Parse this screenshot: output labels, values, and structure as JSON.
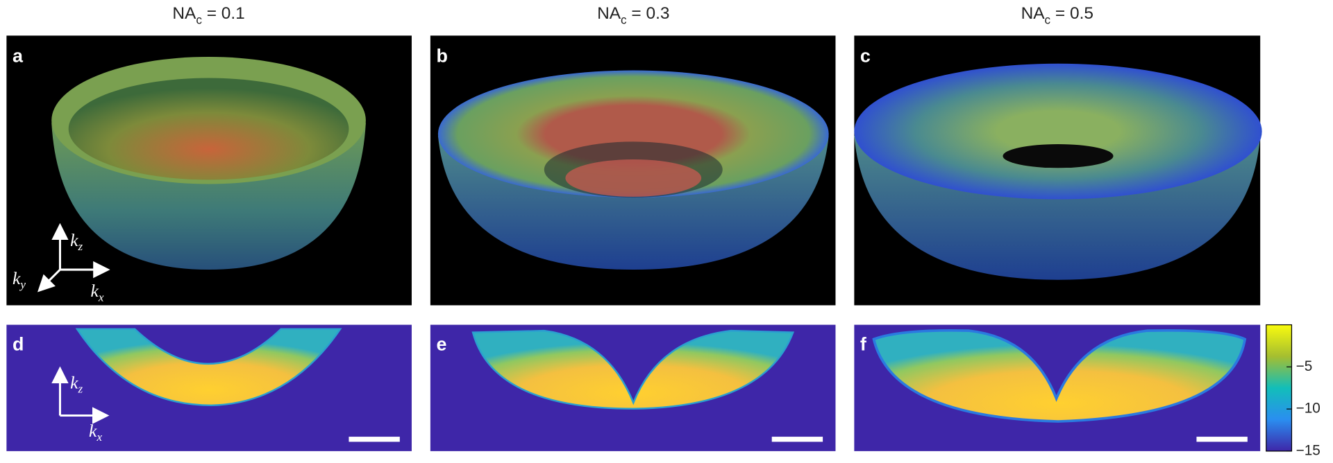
{
  "panels": [
    {
      "label": "a",
      "title": {
        "base": "NA",
        "sub": "c",
        "rest": " = 0.1"
      }
    },
    {
      "label": "b",
      "title": {
        "base": "NA",
        "sub": "c",
        "rest": " = 0.3"
      }
    },
    {
      "label": "c",
      "title": {
        "base": "NA",
        "sub": "c",
        "rest": " = 0.5"
      }
    },
    {
      "label": "d"
    },
    {
      "label": "e"
    },
    {
      "label": "f"
    }
  ],
  "axes_3d": {
    "z": {
      "k": "k",
      "sub": "z"
    },
    "y": {
      "k": "k",
      "sub": "y"
    },
    "x": {
      "k": "k",
      "sub": "x"
    }
  },
  "axes_2d": {
    "z": {
      "k": "k",
      "sub": "z"
    },
    "x": {
      "k": "k",
      "sub": "x"
    }
  },
  "colorbar": {
    "lim": [
      -15,
      0
    ],
    "ticks": [
      {
        "value": -5,
        "label": "−5"
      },
      {
        "value": -10,
        "label": "−10"
      },
      {
        "value": -15,
        "label": "−15"
      }
    ]
  }
}
